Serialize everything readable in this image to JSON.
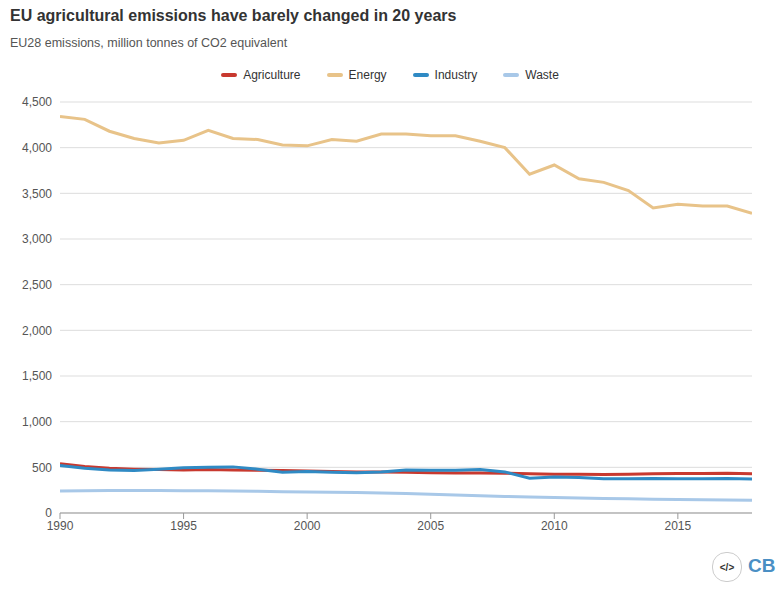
{
  "chart_data": {
    "type": "line",
    "title": "EU agricultural emissions have barely changed in 20 years",
    "subtitle": "EU28 emissions, million tonnes of CO2 equivalent",
    "x": [
      1990,
      1991,
      1992,
      1993,
      1994,
      1995,
      1996,
      1997,
      1998,
      1999,
      2000,
      2001,
      2002,
      2003,
      2004,
      2005,
      2006,
      2007,
      2008,
      2009,
      2010,
      2011,
      2012,
      2013,
      2014,
      2015,
      2016,
      2017,
      2018
    ],
    "series": [
      {
        "name": "Agriculture",
        "color": "#c8392f",
        "values": [
          540,
          510,
          490,
          480,
          475,
          470,
          475,
          470,
          468,
          465,
          460,
          455,
          450,
          448,
          445,
          440,
          437,
          437,
          435,
          430,
          425,
          425,
          422,
          425,
          430,
          432,
          432,
          435,
          430
        ]
      },
      {
        "name": "Energy",
        "color": "#e8c389",
        "values": [
          4340,
          4310,
          4180,
          4100,
          4050,
          4080,
          4190,
          4100,
          4090,
          4030,
          4020,
          4090,
          4070,
          4150,
          4150,
          4130,
          4130,
          4070,
          4000,
          3710,
          3810,
          3660,
          3620,
          3530,
          3340,
          3380,
          3360,
          3360,
          3280
        ]
      },
      {
        "name": "Industry",
        "color": "#2f8ac4",
        "values": [
          520,
          490,
          470,
          465,
          480,
          495,
          500,
          505,
          480,
          445,
          455,
          445,
          440,
          450,
          470,
          468,
          468,
          475,
          450,
          380,
          395,
          390,
          375,
          375,
          378,
          375,
          375,
          378,
          372
        ]
      },
      {
        "name": "Waste",
        "color": "#a8c8e8",
        "values": [
          240,
          243,
          245,
          246,
          245,
          244,
          243,
          240,
          237,
          233,
          230,
          227,
          224,
          220,
          213,
          205,
          198,
          190,
          182,
          176,
          170,
          165,
          160,
          155,
          150,
          147,
          145,
          143,
          140
        ]
      }
    ],
    "xlim": [
      1990,
      2018
    ],
    "xticks": [
      1990,
      1995,
      2000,
      2005,
      2010,
      2015
    ],
    "ylim": [
      0,
      4500
    ],
    "yticks": [
      0,
      500,
      {
        "value": 1000,
        "label": "1,000"
      },
      {
        "value": 1500,
        "label": "1,500"
      },
      {
        "value": 2000,
        "label": "2,000"
      },
      {
        "value": 2500,
        "label": "2,500"
      },
      {
        "value": 3000,
        "label": "3,000"
      },
      {
        "value": 3500,
        "label": "3,500"
      },
      {
        "value": 4000,
        "label": "4,000"
      },
      {
        "value": 4500,
        "label": "4,500"
      }
    ],
    "grid": true,
    "legend": "top",
    "annotations": [
      "</>",
      "CB"
    ]
  }
}
